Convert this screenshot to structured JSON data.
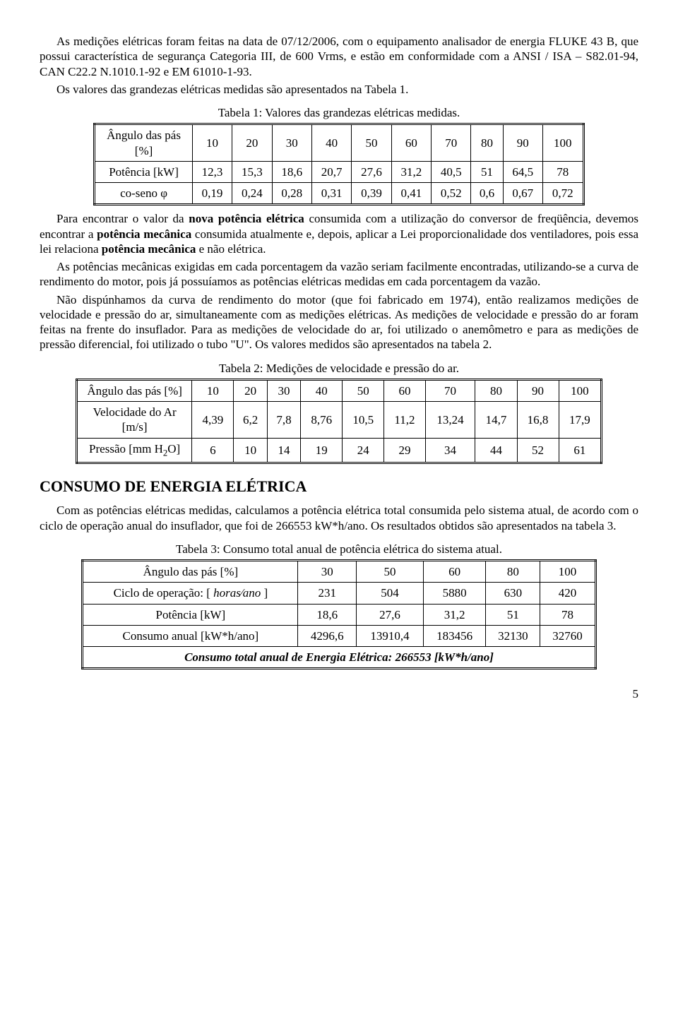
{
  "intro": {
    "p1a": "As medições elétricas foram feitas na data de 07/12/2006, com o equipamento analisador de energia FLUKE 43 B, que possui característica de segurança Categoria III, de 600 Vrms, e estão em conformidade com a ANSI / ISA – S82.01-94, CAN C22.2 N.1010.1-92 e EM 61010-1-93.",
    "p1b": "Os valores das grandezas elétricas medidas são apresentados na Tabela 1."
  },
  "table1": {
    "caption": "Tabela 1: Valores das grandezas elétricas medidas.",
    "rows": [
      {
        "label": "Ângulo das pás [%]",
        "vals": [
          "10",
          "20",
          "30",
          "40",
          "50",
          "60",
          "70",
          "80",
          "90",
          "100"
        ]
      },
      {
        "label": "Potência [kW]",
        "vals": [
          "12,3",
          "15,3",
          "18,6",
          "20,7",
          "27,6",
          "31,2",
          "40,5",
          "51",
          "64,5",
          "78"
        ]
      },
      {
        "label": "co-seno φ",
        "vals": [
          "0,19",
          "0,24",
          "0,28",
          "0,31",
          "0,39",
          "0,41",
          "0,52",
          "0,6",
          "0,67",
          "0,72"
        ]
      }
    ]
  },
  "mid": {
    "p1": "Para encontrar o valor da ",
    "p1b": "nova potência elétrica",
    "p1c": " consumida com a utilização do conversor de freqüência, devemos encontrar a ",
    "p1d": "potência mecânica",
    "p1e": " consumida atualmente e, depois, aplicar a Lei proporcionalidade dos ventiladores, pois essa lei relaciona ",
    "p1f": "potência mecânica",
    "p1g": " e não elétrica.",
    "p2": "As potências mecânicas exigidas em cada porcentagem da vazão seriam facilmente encontradas, utilizando-se a curva de rendimento do motor, pois já possuíamos as potências elétricas medidas em cada porcentagem da vazão.",
    "p3": "Não dispúnhamos da curva de rendimento do motor (que foi fabricado em 1974), então realizamos medições de velocidade e pressão do ar, simultaneamente com as medições elétricas. As medições de velocidade e pressão do ar foram feitas na frente do insuflador. Para as medições de velocidade do ar, foi utilizado o anemômetro e para as medições de pressão diferencial, foi utilizado o tubo \"U\". Os valores medidos são apresentados na tabela 2."
  },
  "table2": {
    "caption": "Tabela 2: Medições de velocidade e pressão do ar.",
    "rows": [
      {
        "label": "Ângulo das pás [%]",
        "vals": [
          "10",
          "20",
          "30",
          "40",
          "50",
          "60",
          "70",
          "80",
          "90",
          "100"
        ]
      },
      {
        "label": "Velocidade do Ar [m/s]",
        "vals": [
          "4,39",
          "6,2",
          "7,8",
          "8,76",
          "10,5",
          "11,2",
          "13,24",
          "14,7",
          "16,8",
          "17,9"
        ]
      },
      {
        "label_html": "Pressão [mm H<sub>2</sub>O]",
        "vals": [
          "6",
          "10",
          "14",
          "19",
          "24",
          "29",
          "34",
          "44",
          "52",
          "61"
        ]
      }
    ]
  },
  "section_title": "CONSUMO DE ENERGIA ELÉTRICA",
  "consumo_p": "Com as potências elétricas medidas, calculamos a potência elétrica total consumida pelo sistema atual, de acordo com o ciclo de operação anual do insuflador, que foi de 266553 kW*h/ano. Os resultados obtidos são apresentados na tabela 3.",
  "table3": {
    "caption": "Tabela 3: Consumo total anual de potência elétrica do sistema atual.",
    "rows": [
      {
        "label": "Ângulo das pás [%]",
        "vals": [
          "30",
          "50",
          "60",
          "80",
          "100"
        ]
      },
      {
        "label_html": "Ciclo de operação: [ <span style='font-style:italic'>horas⁄ano</span> ]",
        "vals": [
          "231",
          "504",
          "5880",
          "630",
          "420"
        ]
      },
      {
        "label": "Potência [kW]",
        "vals": [
          "18,6",
          "27,6",
          "31,2",
          "51",
          "78"
        ]
      },
      {
        "label": "Consumo anual [kW*h/ano]",
        "vals": [
          "4296,6",
          "13910,4",
          "183456",
          "32130",
          "32760"
        ]
      }
    ],
    "total": "Consumo total anual de Energia Elétrica: 266553 [kW*h/ano]"
  },
  "page_num": "5"
}
